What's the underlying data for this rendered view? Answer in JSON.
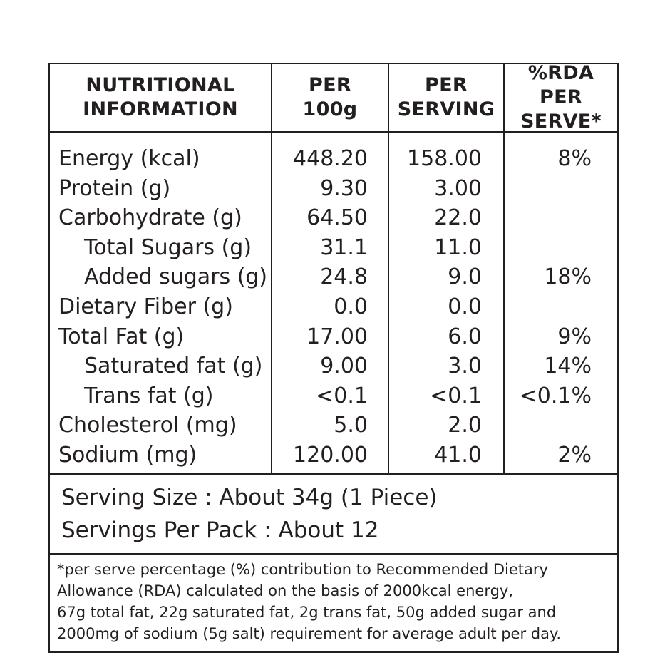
{
  "headers": {
    "col1_line1": "NUTRITIONAL",
    "col1_line2": "INFORMATION",
    "col2_line1": "PER",
    "col2_line2": "100g",
    "col3_line1": "PER",
    "col3_line2": "SERVING",
    "col4_line1": "%RDA PER",
    "col4_line2": "SERVE*"
  },
  "rows": [
    {
      "label": "Energy (kcal)",
      "per_100g": "448.20",
      "per_serving": "158.00",
      "rda": "8%"
    },
    {
      "label": "Protein (g)",
      "per_100g": "9.30",
      "per_serving": "3.00",
      "rda": ""
    },
    {
      "label": "Carbohydrate (g)",
      "per_100g": "64.50",
      "per_serving": "22.0",
      "rda": ""
    },
    {
      "label": "Total Sugars (g)",
      "per_100g": "31.1",
      "per_serving": "11.0",
      "rda": ""
    },
    {
      "label": "Added sugars (g)",
      "per_100g": "24.8",
      "per_serving": "9.0",
      "rda": "18%"
    },
    {
      "label": "Dietary Fiber (g)",
      "per_100g": "0.0",
      "per_serving": "0.0",
      "rda": ""
    },
    {
      "label": "Total Fat (g)",
      "per_100g": "17.00",
      "per_serving": "6.0",
      "rda": "9%"
    },
    {
      "label": "Saturated fat (g)",
      "per_100g": "9.00",
      "per_serving": "3.0",
      "rda": "14%"
    },
    {
      "label": "Trans fat (g)",
      "per_100g": "<0.1",
      "per_serving": "<0.1",
      "rda": "<0.1%"
    },
    {
      "label": "Cholesterol (mg)",
      "per_100g": "5.0",
      "per_serving": "2.0",
      "rda": ""
    },
    {
      "label": "Sodium (mg)",
      "per_100g": "120.00",
      "per_serving": "41.0",
      "rda": "2%"
    }
  ],
  "serving": {
    "size": "Serving Size : About  34g (1 Piece)",
    "per_pack": "Servings Per Pack : About 12"
  },
  "footnote": {
    "line1": "*per serve percentage (%) contribution to Recommended Dietary",
    "line2": "Allowance (RDA) calculated on the basis of  2000kcal energy,",
    "line3": "67g total fat, 22g saturated fat, 2g trans fat, 50g added sugar and",
    "line4": "2000mg of sodium (5g salt) requirement for average adult per day."
  },
  "colors": {
    "ink": "#231f20",
    "background": "#ffffff"
  }
}
